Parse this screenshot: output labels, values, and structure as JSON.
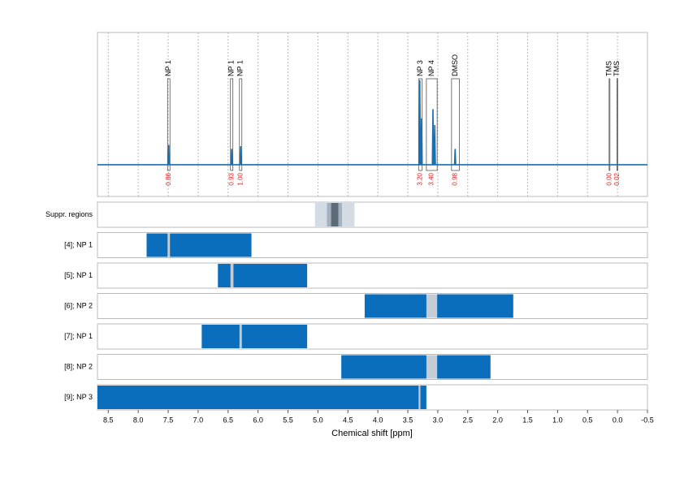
{
  "chart_data": {
    "type": "nmr",
    "x_label": "Chemical shift [ppm]",
    "xlim": [
      8.68,
      -0.5
    ],
    "ylim": [
      -0.24,
      1
    ],
    "xticks": [
      8.5,
      {
        "value": 8,
        "label": "8.0"
      },
      7.5,
      {
        "value": 7,
        "label": "7.0"
      },
      6.5,
      {
        "value": 6,
        "label": "6.0"
      },
      5.5,
      {
        "value": 5,
        "label": "5.0"
      },
      4.5,
      {
        "value": 4,
        "label": "4.0"
      },
      3.5,
      {
        "value": 3,
        "label": "3.0"
      },
      2.5,
      {
        "value": 2,
        "label": "2.0"
      },
      1.5,
      {
        "value": 1,
        "label": "1.0"
      },
      0.5,
      {
        "value": 0,
        "label": "0.0"
      },
      -0.5
    ],
    "grid": true,
    "spectrum": {
      "color": "#1a6faf",
      "x": [
        8.68,
        7.5,
        7.49,
        7.48,
        6.45,
        6.44,
        6.43,
        6.3,
        6.29,
        6.28,
        3.31,
        3.3,
        3.29,
        3.28,
        3.27,
        3.26,
        3.09,
        3.08,
        3.07,
        3.06,
        3.05,
        3.04,
        2.72,
        2.71,
        2.7,
        -0.5
      ],
      "y": [
        0,
        0,
        0.15,
        0,
        0,
        0.12,
        0,
        0,
        0.14,
        0,
        0,
        0.64,
        0,
        0,
        0.35,
        0,
        0,
        0.42,
        0,
        0,
        0.3,
        0,
        0,
        0.12,
        0,
        0
      ]
    },
    "annotations": [
      {
        "label": "NP 1",
        "range": [
          7.51,
          7.47
        ],
        "integral": "0.86"
      },
      {
        "label": "NP 1",
        "range": [
          6.46,
          6.42
        ],
        "integral": "0.93"
      },
      {
        "label": "NP 1",
        "range": [
          6.31,
          6.27
        ],
        "integral": "1.00"
      },
      {
        "label": "NP 3",
        "range": [
          3.32,
          3.26
        ],
        "integral": "3.20"
      },
      {
        "label": "NP 4",
        "range": [
          3.19,
          3.01
        ],
        "integral": "3.40"
      },
      {
        "label": "DMSO",
        "range": [
          2.77,
          2.64
        ],
        "integral": "0.98"
      },
      {
        "label": "TMS",
        "range": [
          0.14,
          0.13
        ],
        "integral": "0.00"
      },
      {
        "label": "TMS",
        "range": [
          0.01,
          0.0
        ],
        "integral": "0.02"
      }
    ],
    "integral_color": "#e02020",
    "tracks": [
      {
        "name": "Suppr. regions",
        "bands": [
          {
            "range": [
              5.05,
              4.39
            ],
            "color": "#d3dce5"
          },
          {
            "range": [
              4.85,
              4.6
            ],
            "color": "#a3b0bd"
          },
          {
            "range": [
              4.78,
              4.66
            ],
            "color": "#5d6b78"
          }
        ]
      },
      {
        "name": "[4]; NP 1",
        "range": [
          7.86,
          6.11
        ],
        "marks": [
          [
            7.51,
            7.47
          ]
        ]
      },
      {
        "name": "[5]; NP 1",
        "range": [
          6.67,
          5.18
        ],
        "marks": [
          [
            6.46,
            6.41
          ]
        ]
      },
      {
        "name": "[6]; NP 2",
        "range": [
          4.22,
          1.74
        ],
        "marks": [
          [
            3.19,
            3.01
          ]
        ]
      },
      {
        "name": "[7]; NP 1",
        "range": [
          6.94,
          5.18
        ],
        "marks": [
          [
            6.31,
            6.27
          ]
        ]
      },
      {
        "name": "[8]; NP 2",
        "range": [
          4.61,
          2.12
        ],
        "marks": [
          [
            3.19,
            3.01
          ]
        ]
      },
      {
        "name": "[9]; NP 3",
        "range": [
          8.68,
          3.19
        ],
        "marks": [
          [
            3.32,
            3.29
          ]
        ]
      }
    ],
    "bar_color": "#0a6ebd",
    "mark_color": "#c5ccd3"
  }
}
